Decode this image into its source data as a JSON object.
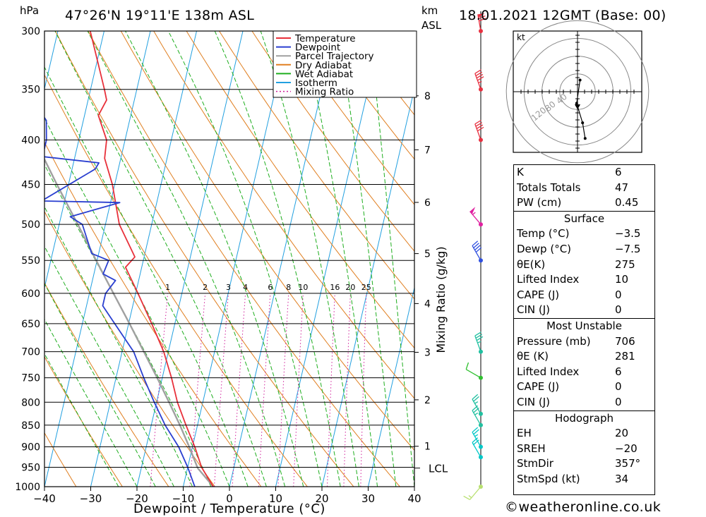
{
  "header": {
    "location": "47°26'N  19°11'E  138m  ASL",
    "datetime": "18.01.2021  12GMT  (Base: 00)",
    "left_unit": "hPa",
    "km_unit": "km",
    "asl_unit": "ASL",
    "kt_label": "kt"
  },
  "colors": {
    "temperature": "#e8303a",
    "dewpoint": "#2a3fd0",
    "parcel": "#a0a0a0",
    "dry_adiabat": "#e07f20",
    "wet_adiabat": "#1fae1f",
    "isotherm": "#22a0e0",
    "mixing_ratio": "#d0209a"
  },
  "chart_data": {
    "type": "skew-t",
    "xlabel": "Dewpoint / Temperature (°C)",
    "ylabel": "hPa",
    "right_label": "Mixing Ratio (g/kg)",
    "x_ticks": [
      -40,
      -30,
      -20,
      -10,
      0,
      10,
      20,
      30,
      40
    ],
    "x_tick_labels": [
      "−40",
      "−30",
      "−20",
      "−10",
      "0",
      "10",
      "20",
      "30",
      "40"
    ],
    "pressure_levels": [
      300,
      350,
      400,
      450,
      500,
      550,
      600,
      650,
      700,
      750,
      800,
      850,
      900,
      950,
      1000
    ],
    "km_ticks": [
      {
        "label": "8",
        "km": 8
      },
      {
        "label": "7",
        "km": 7
      },
      {
        "label": "6",
        "km": 6
      },
      {
        "label": "5",
        "km": 5
      },
      {
        "label": "4",
        "km": 4
      },
      {
        "label": "3",
        "km": 3
      },
      {
        "label": "2",
        "km": 2
      },
      {
        "label": "1",
        "km": 1
      }
    ],
    "lcl_label": "LCL",
    "lcl_pressure": 952,
    "mixing_ratio_values": [
      "1",
      "2",
      "3",
      "4",
      "6",
      "8",
      "10",
      "16",
      "20",
      "25"
    ],
    "legend": [
      {
        "name": "Temperature",
        "key": "temperature",
        "style": "solid"
      },
      {
        "name": "Dewpoint",
        "key": "dewpoint",
        "style": "solid"
      },
      {
        "name": "Parcel Trajectory",
        "key": "parcel",
        "style": "solid"
      },
      {
        "name": "Dry Adiabat",
        "key": "dry_adiabat",
        "style": "solid"
      },
      {
        "name": "Wet Adiabat",
        "key": "wet_adiabat",
        "style": "solid"
      },
      {
        "name": "Isotherm",
        "key": "isotherm",
        "style": "solid"
      },
      {
        "name": "Mixing Ratio",
        "key": "mixing_ratio",
        "style": "dotted"
      }
    ],
    "temperature": [
      {
        "p": 1000,
        "t": -3.5
      },
      {
        "p": 950,
        "t": -7.0
      },
      {
        "p": 900,
        "t": -9.5
      },
      {
        "p": 850,
        "t": -12.5
      },
      {
        "p": 800,
        "t": -15.5
      },
      {
        "p": 750,
        "t": -18.0
      },
      {
        "p": 700,
        "t": -21.0
      },
      {
        "p": 650,
        "t": -25.0
      },
      {
        "p": 600,
        "t": -29.5
      },
      {
        "p": 560,
        "t": -33.5
      },
      {
        "p": 545,
        "t": -32.0
      },
      {
        "p": 500,
        "t": -37.0
      },
      {
        "p": 450,
        "t": -40.5
      },
      {
        "p": 420,
        "t": -43.5
      },
      {
        "p": 400,
        "t": -44.0
      },
      {
        "p": 375,
        "t": -47.0
      },
      {
        "p": 360,
        "t": -46.0
      },
      {
        "p": 350,
        "t": -47.0
      },
      {
        "p": 300,
        "t": -53.0
      }
    ],
    "dewpoint": [
      {
        "p": 1000,
        "t": -7.5
      },
      {
        "p": 950,
        "t": -10.0
      },
      {
        "p": 900,
        "t": -13.0
      },
      {
        "p": 850,
        "t": -17.0
      },
      {
        "p": 800,
        "t": -20.5
      },
      {
        "p": 750,
        "t": -24.0
      },
      {
        "p": 700,
        "t": -27.5
      },
      {
        "p": 650,
        "t": -33.0
      },
      {
        "p": 620,
        "t": -36.5
      },
      {
        "p": 600,
        "t": -36.5
      },
      {
        "p": 580,
        "t": -35.0
      },
      {
        "p": 570,
        "t": -38.0
      },
      {
        "p": 550,
        "t": -37.5
      },
      {
        "p": 540,
        "t": -41.5
      },
      {
        "p": 500,
        "t": -45.0
      },
      {
        "p": 490,
        "t": -48.0
      },
      {
        "p": 472,
        "t": -38.0
      },
      {
        "p": 470,
        "t": -55.0
      },
      {
        "p": 432,
        "t": -45.0
      },
      {
        "p": 425,
        "t": -44.5
      },
      {
        "p": 418,
        "t": -57.0
      },
      {
        "p": 400,
        "t": -57.0
      },
      {
        "p": 380,
        "t": -58.0
      },
      {
        "p": 360,
        "t": -62.0
      },
      {
        "p": 330,
        "t": -64.0
      },
      {
        "p": 310,
        "t": -62.5
      },
      {
        "p": 300,
        "t": -67.0
      }
    ],
    "parcel": [
      {
        "p": 1000,
        "t": -3.5
      },
      {
        "p": 952,
        "t": -7.8
      },
      {
        "p": 900,
        "t": -10.7
      },
      {
        "p": 850,
        "t": -13.8
      },
      {
        "p": 800,
        "t": -17.3
      },
      {
        "p": 750,
        "t": -21.1
      },
      {
        "p": 700,
        "t": -25.3
      },
      {
        "p": 650,
        "t": -29.8
      },
      {
        "p": 600,
        "t": -34.8
      },
      {
        "p": 550,
        "t": -40.2
      },
      {
        "p": 500,
        "t": -46.0
      },
      {
        "p": 450,
        "t": -52.5
      },
      {
        "p": 400,
        "t": -59.5
      },
      {
        "p": 350,
        "t": -67.0
      },
      {
        "p": 300,
        "t": -75.0
      }
    ],
    "wind_barbs": [
      {
        "p": 1000,
        "dir": 220,
        "kt": 15,
        "color": "#b8e070"
      },
      {
        "p": 925,
        "dir": 330,
        "kt": 20,
        "color": "#00c8c8"
      },
      {
        "p": 900,
        "dir": 330,
        "kt": 25,
        "color": "#00c8c8"
      },
      {
        "p": 850,
        "dir": 330,
        "kt": 25,
        "color": "#20c0a0"
      },
      {
        "p": 825,
        "dir": 330,
        "kt": 25,
        "color": "#20c0a0"
      },
      {
        "p": 750,
        "dir": 300,
        "kt": 10,
        "color": "#30c030"
      },
      {
        "p": 700,
        "dir": 340,
        "kt": 35,
        "color": "#20c0a0"
      },
      {
        "p": 550,
        "dir": 330,
        "kt": 40,
        "color": "#3050e0"
      },
      {
        "p": 500,
        "dir": 320,
        "kt": 55,
        "color": "#e020a0"
      },
      {
        "p": 400,
        "dir": 340,
        "kt": 40,
        "color": "#e83040"
      },
      {
        "p": 350,
        "dir": 340,
        "kt": 45,
        "color": "#e83040"
      },
      {
        "p": 300,
        "dir": 350,
        "kt": 70,
        "color": "#e83040"
      }
    ],
    "hodograph": {
      "ring_labels": [
        "40",
        "80",
        "120"
      ],
      "points_uv": [
        [
          3,
          6
        ],
        [
          -1,
          -6
        ],
        [
          6,
          -16
        ],
        [
          9,
          -24
        ]
      ]
    }
  },
  "indices": [
    {
      "label": "K",
      "value": "6"
    },
    {
      "label": "Totals Totals",
      "value": "47"
    },
    {
      "label": "PW (cm)",
      "value": "0.45"
    }
  ],
  "surface": {
    "title": "Surface",
    "rows": [
      {
        "label": "Temp (°C)",
        "value": "−3.5"
      },
      {
        "label": "Dewp (°C)",
        "value": "−7.5"
      },
      {
        "label": "θE(K)",
        "value": "275"
      },
      {
        "label": "Lifted Index",
        "value": "10"
      },
      {
        "label": "CAPE (J)",
        "value": "0"
      },
      {
        "label": "CIN (J)",
        "value": "0"
      }
    ]
  },
  "most_unstable": {
    "title": "Most Unstable",
    "rows": [
      {
        "label": "Pressure (mb)",
        "value": "706"
      },
      {
        "label": "θE (K)",
        "value": "281"
      },
      {
        "label": "Lifted Index",
        "value": "6"
      },
      {
        "label": "CAPE (J)",
        "value": "0"
      },
      {
        "label": "CIN (J)",
        "value": "0"
      }
    ]
  },
  "hodograph_params": {
    "title": "Hodograph",
    "rows": [
      {
        "label": "EH",
        "value": "20"
      },
      {
        "label": "SREH",
        "value": "−20"
      },
      {
        "label": "StmDir",
        "value": "357°"
      },
      {
        "label": "StmSpd (kt)",
        "value": "34"
      }
    ]
  },
  "footer": {
    "copyright": "©weatheronline.co.uk"
  }
}
